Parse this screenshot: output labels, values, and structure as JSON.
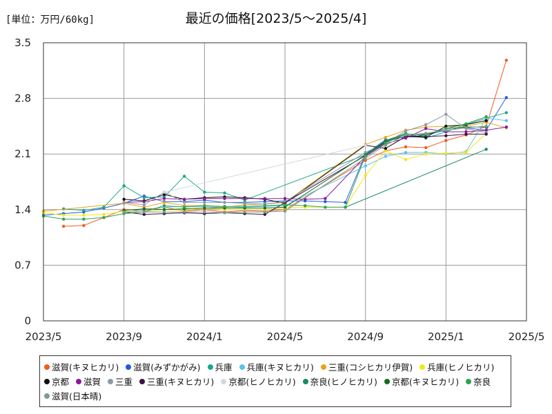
{
  "chart_data": {
    "type": "line",
    "title": "最近の価格[2023/5～2025/4]",
    "unit_label": "[単位：万円/60kg]",
    "y_ticks": [
      "0",
      "0.7",
      "1.4",
      "2.1",
      "2.8",
      "3.5"
    ],
    "x_ticks": [
      "2023/5",
      "2023/9",
      "2024/1",
      "2024/5",
      "2024/9",
      "2025/1",
      "2025/5"
    ],
    "ylim": [
      0,
      3.5
    ],
    "xlim": [
      "2023-05",
      "2025-05"
    ],
    "grid": true,
    "legend_position": "bottom",
    "series": [
      {
        "name": "滋賀(キヌヒカリ)",
        "color": "#f25a1e",
        "points": [
          [
            "2023-06",
            1.19
          ],
          [
            "2023-07",
            1.2
          ],
          [
            "2023-08",
            1.3
          ],
          [
            "2023-09",
            1.4
          ],
          [
            "2023-10",
            1.39
          ],
          [
            "2023-11",
            1.43
          ],
          [
            "2023-12",
            1.38
          ],
          [
            "2024-01",
            1.4
          ],
          [
            "2024-02",
            1.37
          ],
          [
            "2024-03",
            1.39
          ],
          [
            "2024-04",
            1.38
          ],
          [
            "2024-05",
            1.4
          ],
          [
            "2024-09",
            2.02
          ],
          [
            "2024-10",
            2.14
          ],
          [
            "2024-11",
            2.19
          ],
          [
            "2024-12",
            2.18
          ],
          [
            "2025-01",
            2.27
          ],
          [
            "2025-02",
            2.34
          ],
          [
            "2025-03",
            2.45
          ],
          [
            "2025-04",
            3.28
          ]
        ]
      },
      {
        "name": "滋賀(みずかがみ)",
        "color": "#1f5be0",
        "points": [
          [
            "2023-05",
            1.33
          ],
          [
            "2023-06",
            1.35
          ],
          [
            "2023-07",
            1.37
          ],
          [
            "2023-08",
            1.42
          ],
          [
            "2023-09",
            1.48
          ],
          [
            "2023-10",
            1.57
          ],
          [
            "2023-11",
            1.5
          ],
          [
            "2023-12",
            1.5
          ],
          [
            "2024-01",
            1.52
          ],
          [
            "2024-02",
            1.49
          ],
          [
            "2024-03",
            1.49
          ],
          [
            "2024-04",
            1.5
          ],
          [
            "2024-05",
            1.51
          ],
          [
            "2024-06",
            1.51
          ],
          [
            "2024-07",
            1.5
          ],
          [
            "2024-08",
            1.49
          ],
          [
            "2024-09",
            2.1
          ],
          [
            "2024-10",
            2.28
          ],
          [
            "2024-11",
            2.31
          ],
          [
            "2024-12",
            2.34
          ],
          [
            "2025-01",
            2.4
          ],
          [
            "2025-02",
            2.43
          ],
          [
            "2025-03",
            2.4
          ],
          [
            "2025-04",
            2.81
          ]
        ]
      },
      {
        "name": "兵庫",
        "color": "#1aa88b",
        "points": [
          [
            "2023-06",
            1.41
          ],
          [
            "2023-07",
            1.39
          ],
          [
            "2023-08",
            1.43
          ],
          [
            "2023-09",
            1.7
          ],
          [
            "2023-10",
            1.55
          ],
          [
            "2023-11",
            1.56
          ],
          [
            "2023-12",
            1.82
          ],
          [
            "2024-01",
            1.62
          ],
          [
            "2024-02",
            1.61
          ],
          [
            "2024-03",
            1.52
          ],
          [
            "2024-09",
            2.09
          ],
          [
            "2024-10",
            2.27
          ],
          [
            "2024-11",
            2.36
          ],
          [
            "2024-12",
            2.3
          ],
          [
            "2025-01",
            2.38
          ],
          [
            "2025-02",
            2.47
          ],
          [
            "2025-03",
            2.55
          ],
          [
            "2025-04",
            2.62
          ]
        ]
      },
      {
        "name": "兵庫(キヌヒカリ)",
        "color": "#5cc3e8",
        "points": [
          [
            "2023-09",
            1.36
          ],
          [
            "2023-10",
            1.4
          ],
          [
            "2023-11",
            1.43
          ],
          [
            "2023-12",
            1.44
          ],
          [
            "2024-01",
            1.44
          ],
          [
            "2024-02",
            1.42
          ],
          [
            "2024-03",
            1.43
          ],
          [
            "2024-04",
            1.44
          ],
          [
            "2024-05",
            1.45
          ],
          [
            "2024-09",
            1.95
          ],
          [
            "2024-10",
            2.07
          ],
          [
            "2024-11",
            2.12
          ],
          [
            "2024-12",
            2.12
          ],
          [
            "2025-01",
            2.1
          ],
          [
            "2025-02",
            2.13
          ],
          [
            "2025-03",
            2.55
          ],
          [
            "2025-04",
            2.52
          ]
        ]
      },
      {
        "name": "三重(コシヒカリ伊賀)",
        "color": "#e8a317",
        "points": [
          [
            "2023-05",
            1.38
          ],
          [
            "2023-09",
            1.48
          ],
          [
            "2023-10",
            1.43
          ],
          [
            "2023-11",
            1.49
          ],
          [
            "2023-12",
            1.45
          ],
          [
            "2024-01",
            1.45
          ],
          [
            "2024-02",
            1.43
          ],
          [
            "2024-03",
            1.46
          ],
          [
            "2024-04",
            1.47
          ],
          [
            "2024-05",
            1.49
          ],
          [
            "2024-09",
            2.22
          ],
          [
            "2024-10",
            2.31
          ],
          [
            "2024-11",
            2.4
          ],
          [
            "2024-12",
            2.44
          ],
          [
            "2025-01",
            2.45
          ],
          [
            "2025-02",
            2.45
          ],
          [
            "2025-03",
            2.5
          ],
          [
            "2025-04",
            2.43
          ]
        ]
      },
      {
        "name": "兵庫(ヒノヒカリ)",
        "color": "#f5e61a",
        "points": [
          [
            "2023-05",
            1.36
          ],
          [
            "2023-06",
            1.33
          ],
          [
            "2023-07",
            1.33
          ],
          [
            "2023-08",
            1.34
          ],
          [
            "2023-09",
            1.38
          ],
          [
            "2023-10",
            1.37
          ],
          [
            "2023-11",
            1.4
          ],
          [
            "2023-12",
            1.39
          ],
          [
            "2024-01",
            1.42
          ],
          [
            "2024-02",
            1.4
          ],
          [
            "2024-03",
            1.4
          ],
          [
            "2024-04",
            1.4
          ],
          [
            "2024-05",
            1.42
          ],
          [
            "2024-06",
            1.43
          ],
          [
            "2024-07",
            1.43
          ],
          [
            "2024-08",
            1.43
          ],
          [
            "2024-09",
            1.83
          ],
          [
            "2024-10",
            2.14
          ],
          [
            "2024-11",
            2.03
          ],
          [
            "2024-12",
            2.1
          ],
          [
            "2025-01",
            2.11
          ],
          [
            "2025-02",
            2.12
          ],
          [
            "2025-03",
            2.36
          ]
        ]
      },
      {
        "name": "京都",
        "color": "#111111",
        "points": [
          [
            "2023-09",
            1.53
          ],
          [
            "2023-10",
            1.51
          ],
          [
            "2023-11",
            1.59
          ],
          [
            "2023-12",
            1.53
          ],
          [
            "2024-01",
            1.55
          ],
          [
            "2024-02",
            1.56
          ],
          [
            "2024-03",
            1.55
          ],
          [
            "2024-04",
            1.53
          ],
          [
            "2024-05",
            1.48
          ],
          [
            "2024-09",
            2.21
          ],
          [
            "2024-10",
            2.17
          ],
          [
            "2024-11",
            2.32
          ],
          [
            "2024-12",
            2.31
          ],
          [
            "2025-01",
            2.45
          ],
          [
            "2025-02",
            2.47
          ],
          [
            "2025-03",
            2.52
          ]
        ]
      },
      {
        "name": "滋賀",
        "color": "#8b1a99",
        "points": [
          [
            "2023-09",
            1.49
          ],
          [
            "2023-10",
            1.5
          ],
          [
            "2023-11",
            1.54
          ],
          [
            "2023-12",
            1.53
          ],
          [
            "2024-01",
            1.54
          ],
          [
            "2024-02",
            1.54
          ],
          [
            "2024-03",
            1.54
          ],
          [
            "2024-04",
            1.54
          ],
          [
            "2024-05",
            1.54
          ],
          [
            "2024-06",
            1.53
          ],
          [
            "2024-07",
            1.54
          ],
          [
            "2024-09",
            2.07
          ],
          [
            "2024-10",
            2.23
          ],
          [
            "2024-11",
            2.3
          ],
          [
            "2024-12",
            2.42
          ],
          [
            "2025-01",
            2.38
          ],
          [
            "2025-02",
            2.38
          ],
          [
            "2025-03",
            2.4
          ],
          [
            "2025-04",
            2.44
          ]
        ]
      },
      {
        "name": "三重",
        "color": "#8f9aa6",
        "points": [
          [
            "2023-09",
            1.49
          ],
          [
            "2023-10",
            1.46
          ],
          [
            "2023-11",
            1.62
          ],
          [
            "2023-12",
            1.49
          ],
          [
            "2024-01",
            1.49
          ],
          [
            "2024-02",
            1.49
          ],
          [
            "2024-03",
            1.48
          ],
          [
            "2024-04",
            1.47
          ],
          [
            "2024-05",
            1.5
          ],
          [
            "2024-09",
            2.12
          ],
          [
            "2024-10",
            2.24
          ],
          [
            "2024-11",
            2.39
          ],
          [
            "2024-12",
            2.47
          ],
          [
            "2025-01",
            2.6
          ],
          [
            "2025-02",
            2.42
          ],
          [
            "2025-03",
            2.37
          ]
        ]
      },
      {
        "name": "三重(キヌヒカリ)",
        "color": "#3b1245",
        "points": [
          [
            "2023-09",
            1.37
          ],
          [
            "2023-10",
            1.34
          ],
          [
            "2023-11",
            1.35
          ],
          [
            "2023-12",
            1.36
          ],
          [
            "2024-01",
            1.35
          ],
          [
            "2024-02",
            1.36
          ],
          [
            "2024-03",
            1.35
          ],
          [
            "2024-04",
            1.34
          ],
          [
            "2024-09",
            2.08
          ],
          [
            "2024-10",
            2.25
          ],
          [
            "2024-11",
            2.33
          ],
          [
            "2024-12",
            2.32
          ],
          [
            "2025-01",
            2.33
          ],
          [
            "2025-02",
            2.35
          ],
          [
            "2025-03",
            2.35
          ]
        ]
      },
      {
        "name": "京都(ヒノヒカリ)",
        "color": "#d3d8e0",
        "points": [
          [
            "2023-11",
            1.62
          ],
          [
            "2024-09",
            2.21
          ]
        ]
      },
      {
        "name": "奈良(ヒノヒカリ)",
        "color": "#178a68",
        "points": [
          [
            "2024-08",
            1.43
          ],
          [
            "2025-03",
            2.16
          ]
        ]
      },
      {
        "name": "京都(キヌヒカリ)",
        "color": "#176b1e",
        "points": [
          [
            "2023-09",
            1.39
          ],
          [
            "2023-10",
            1.41
          ],
          [
            "2023-11",
            1.4
          ],
          [
            "2023-12",
            1.41
          ],
          [
            "2024-01",
            1.42
          ],
          [
            "2024-02",
            1.42
          ],
          [
            "2024-03",
            1.42
          ],
          [
            "2024-04",
            1.42
          ],
          [
            "2024-05",
            1.43
          ],
          [
            "2024-09",
            2.09
          ],
          [
            "2024-10",
            2.26
          ],
          [
            "2024-11",
            2.35
          ],
          [
            "2024-12",
            2.34
          ],
          [
            "2025-01",
            2.42
          ],
          [
            "2025-02",
            2.44
          ],
          [
            "2025-03",
            2.44
          ]
        ]
      },
      {
        "name": "奈良",
        "color": "#2fa352",
        "points": [
          [
            "2023-05",
            1.32
          ],
          [
            "2023-06",
            1.28
          ],
          [
            "2023-07",
            1.28
          ],
          [
            "2023-08",
            1.3
          ],
          [
            "2023-09",
            1.35
          ],
          [
            "2023-10",
            1.37
          ],
          [
            "2023-11",
            1.45
          ],
          [
            "2023-12",
            1.43
          ],
          [
            "2024-01",
            1.45
          ],
          [
            "2024-02",
            1.44
          ],
          [
            "2024-03",
            1.44
          ],
          [
            "2024-04",
            1.45
          ],
          [
            "2024-05",
            1.46
          ],
          [
            "2024-06",
            1.45
          ],
          [
            "2024-07",
            1.43
          ],
          [
            "2024-08",
            1.43
          ],
          [
            "2024-09",
            2.08
          ],
          [
            "2024-10",
            2.24
          ],
          [
            "2024-11",
            2.35
          ],
          [
            "2024-12",
            2.35
          ],
          [
            "2025-01",
            2.42
          ],
          [
            "2025-02",
            2.48
          ],
          [
            "2025-03",
            2.57
          ]
        ]
      },
      {
        "name": "滋賀(日本晴)",
        "color": "#7a9e8f",
        "points": [
          [
            "2023-09",
            1.37
          ],
          [
            "2023-10",
            1.37
          ],
          [
            "2023-11",
            1.37
          ],
          [
            "2023-12",
            1.37
          ],
          [
            "2024-01",
            1.37
          ],
          [
            "2024-02",
            1.36
          ],
          [
            "2024-03",
            1.37
          ],
          [
            "2024-04",
            1.37
          ],
          [
            "2024-05",
            1.38
          ],
          [
            "2024-09",
            2.05
          ],
          [
            "2024-10",
            2.21
          ],
          [
            "2024-11",
            2.34
          ],
          [
            "2024-12",
            2.36
          ],
          [
            "2025-01",
            2.4
          ],
          [
            "2025-02",
            2.43
          ],
          [
            "2025-03",
            2.45
          ]
        ]
      }
    ]
  }
}
